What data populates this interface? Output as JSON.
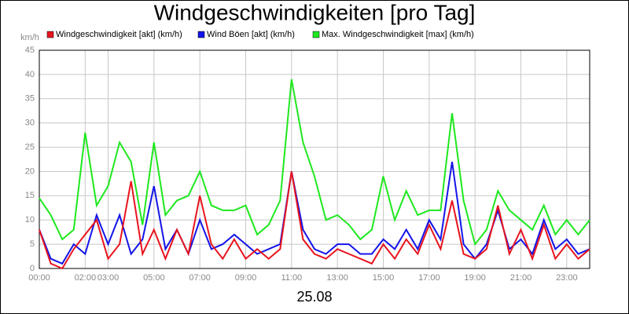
{
  "chart_data": {
    "type": "line",
    "title": "Windgeschwindigkeiten [pro Tag]",
    "y_label": "km/h",
    "x_label": "25.08",
    "x": [
      0,
      0.5,
      1,
      1.5,
      2,
      2.5,
      3,
      3.5,
      4,
      4.5,
      5,
      5.5,
      6,
      6.5,
      7,
      7.5,
      8,
      8.5,
      9,
      9.5,
      10,
      10.5,
      11,
      11.5,
      12,
      12.5,
      13,
      13.5,
      14,
      14.5,
      15,
      15.5,
      16,
      16.5,
      17,
      17.5,
      18,
      18.5,
      19,
      19.5,
      20,
      20.5,
      21,
      21.5,
      22,
      22.5,
      23,
      23.5,
      24
    ],
    "xlim": [
      0,
      24
    ],
    "xticks": [
      {
        "value": 0,
        "label": "00:00"
      },
      {
        "value": 2,
        "label": "02:00"
      },
      {
        "value": 3,
        "label": "03:00"
      },
      {
        "value": 5,
        "label": "05:00"
      },
      {
        "value": 7,
        "label": "07:00"
      },
      {
        "value": 9,
        "label": "09:00"
      },
      {
        "value": 11,
        "label": "11:00"
      },
      {
        "value": 13,
        "label": "13:00"
      },
      {
        "value": 15,
        "label": "15:00"
      },
      {
        "value": 17,
        "label": "17:00"
      },
      {
        "value": 19,
        "label": "19:00"
      },
      {
        "value": 21,
        "label": "21:00"
      },
      {
        "value": 23,
        "label": "23:00"
      }
    ],
    "ylim": [
      0,
      45
    ],
    "yticks": [
      0,
      5,
      10,
      15,
      20,
      25,
      30,
      35,
      40,
      45
    ],
    "grid": true,
    "series": [
      {
        "name": "Windgeschwindigkeit [akt] (km/h)",
        "color": "#e8141e",
        "values": [
          8,
          1,
          0,
          4,
          7,
          10,
          2,
          5,
          18,
          3,
          8,
          2,
          8,
          3,
          15,
          5,
          2,
          6,
          2,
          4,
          2,
          4,
          20,
          6,
          3,
          2,
          4,
          3,
          2,
          1,
          5,
          2,
          6,
          3,
          9,
          4,
          14,
          3,
          2,
          4,
          13,
          3,
          8,
          2,
          9,
          2,
          5,
          2,
          4
        ]
      },
      {
        "name": "Wind Böen [akt] (km/h)",
        "color": "#1414e8",
        "values": [
          8,
          2,
          1,
          5,
          3,
          11,
          5,
          11,
          3,
          6,
          17,
          4,
          8,
          3,
          10,
          4,
          5,
          7,
          5,
          3,
          4,
          5,
          20,
          8,
          4,
          3,
          5,
          5,
          3,
          3,
          6,
          4,
          8,
          4,
          10,
          6,
          22,
          5,
          2,
          5,
          12,
          4,
          6,
          3,
          10,
          4,
          6,
          3,
          4
        ]
      },
      {
        "name": "Max. Windgeschwindigkeit [max] (km/h)",
        "color": "#1ee81e",
        "values": [
          14.5,
          11,
          6,
          8,
          28,
          13,
          17,
          26,
          22,
          9,
          26,
          11,
          14,
          15,
          20,
          13,
          12,
          12,
          13,
          7,
          9,
          14,
          39,
          26,
          19,
          10,
          11,
          9,
          6,
          8,
          19,
          10,
          16,
          11,
          12,
          12,
          32,
          14,
          5,
          8,
          16,
          12,
          10,
          8,
          13,
          7,
          10,
          7,
          10
        ]
      }
    ]
  }
}
